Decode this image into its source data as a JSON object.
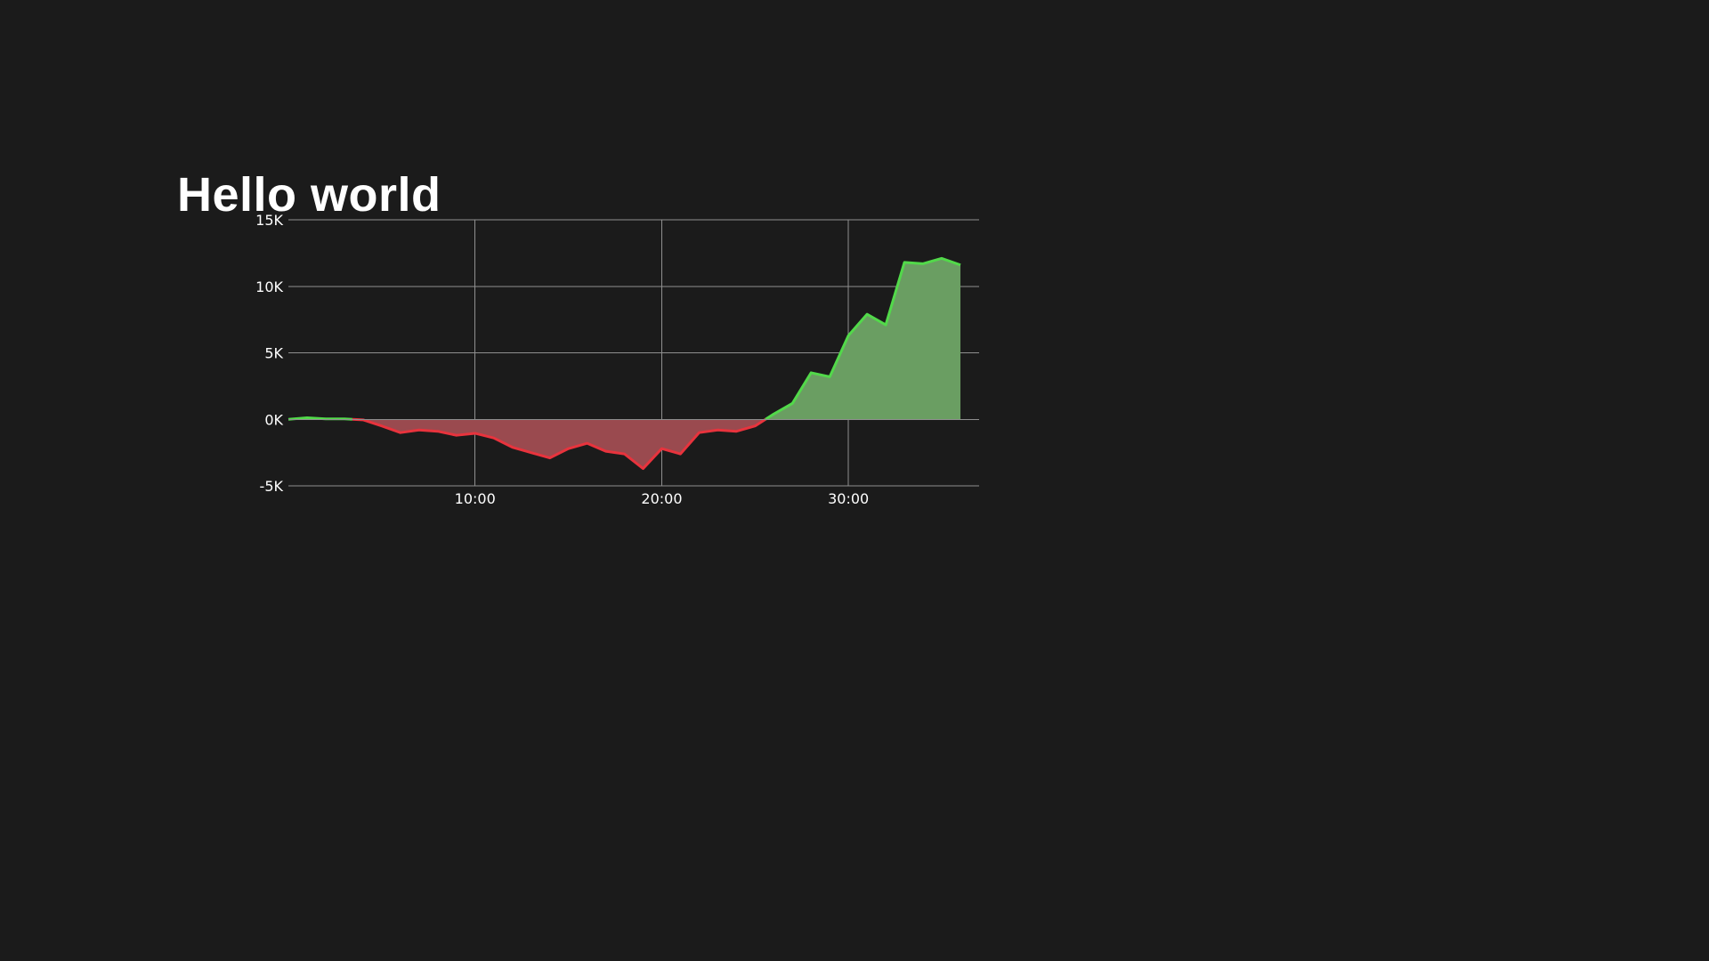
{
  "chart_data": {
    "type": "area",
    "title": "Hello world",
    "xlabel": "",
    "ylabel": "",
    "x_unit": "minutes",
    "xlim": [
      0,
      37
    ],
    "ylim": [
      -5000,
      15000
    ],
    "x_ticks": [
      {
        "value": 10,
        "label": "10:00"
      },
      {
        "value": 20,
        "label": "20:00"
      },
      {
        "value": 30,
        "label": "30:00"
      }
    ],
    "y_ticks": [
      {
        "value": 15000,
        "label": "15K"
      },
      {
        "value": 10000,
        "label": "10K"
      },
      {
        "value": 5000,
        "label": "5K"
      },
      {
        "value": 0,
        "label": "0K"
      },
      {
        "value": -5000,
        "label": "-5K"
      }
    ],
    "grid": true,
    "legend": "none",
    "x": [
      0,
      1,
      2,
      3,
      4,
      5,
      6,
      7,
      8,
      9,
      10,
      11,
      12,
      13,
      14,
      15,
      16,
      17,
      18,
      19,
      20,
      21,
      22,
      23,
      24,
      25,
      26,
      27,
      28,
      29,
      30,
      31,
      32,
      33,
      34,
      35,
      36
    ],
    "series": [
      {
        "values": [
          0,
          120,
          30,
          30,
          -40,
          -500,
          -1000,
          -800,
          -900,
          -1200,
          -1050,
          -1400,
          -2100,
          -2500,
          -2900,
          -2200,
          -1800,
          -2400,
          -2600,
          -3700,
          -2200,
          -2600,
          -1000,
          -800,
          -900,
          -500,
          400,
          1200,
          3500,
          3200,
          6300,
          7900,
          7100,
          11800,
          11700,
          12100,
          11600
        ]
      }
    ],
    "colors": {
      "positive_line": "#52d94a",
      "positive_fill": "#6a9e62",
      "negative_line": "#e8333d",
      "negative_fill": "#9a4a4f",
      "grid": "#8f8f8f",
      "background": "#1b1b1b",
      "text": "#ffffff"
    }
  }
}
